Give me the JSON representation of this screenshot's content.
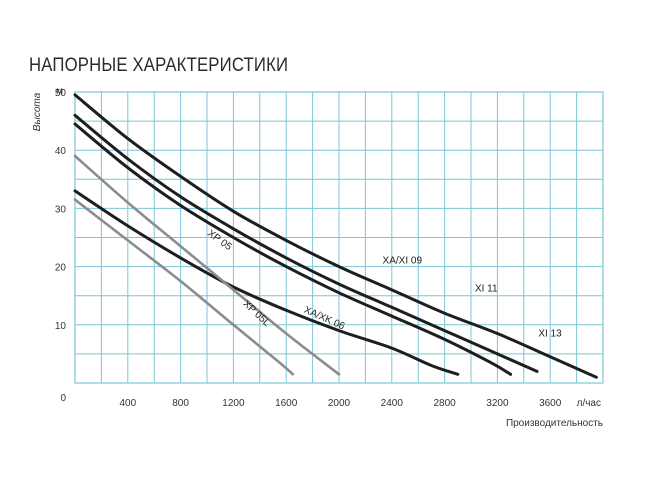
{
  "chart_data": {
    "type": "line",
    "title": "НАПОРНЫЕ ХАРАКТЕРИСТИКИ",
    "ylabel": "Высота",
    "yunit": "м",
    "xlabel": "Производительность",
    "xunit": "л/час",
    "xlim": [
      0,
      4000
    ],
    "ylim": [
      0,
      50
    ],
    "x_ticks": [
      400,
      800,
      1200,
      1600,
      2000,
      2400,
      2800,
      3200,
      3600
    ],
    "y_ticks": [
      0,
      10,
      20,
      30,
      40,
      50
    ],
    "grid": true,
    "colors": {
      "grid": "#7cc6d6",
      "dark": "#1e1e1e",
      "gray": "#8c8c8c"
    },
    "series": [
      {
        "name": "XI 13",
        "color": "dark",
        "points": [
          [
            0,
            49.5
          ],
          [
            400,
            42
          ],
          [
            800,
            35.5
          ],
          [
            1200,
            29.5
          ],
          [
            1600,
            24.5
          ],
          [
            2000,
            20
          ],
          [
            2400,
            16
          ],
          [
            2800,
            12
          ],
          [
            3200,
            8.5
          ],
          [
            3600,
            4.5
          ],
          [
            3950,
            1
          ]
        ],
        "label_at": [
          3510,
          8
        ]
      },
      {
        "name": "XI 11",
        "color": "dark",
        "points": [
          [
            0,
            46
          ],
          [
            400,
            38.5
          ],
          [
            800,
            32
          ],
          [
            1200,
            26.5
          ],
          [
            1600,
            21.5
          ],
          [
            2000,
            17
          ],
          [
            2400,
            13
          ],
          [
            2800,
            9
          ],
          [
            3200,
            5
          ],
          [
            3500,
            2
          ]
        ],
        "label_at": [
          3030,
          15.7
        ]
      },
      {
        "name": "XA/XI 09",
        "color": "dark",
        "points": [
          [
            0,
            44.5
          ],
          [
            400,
            37
          ],
          [
            800,
            30.5
          ],
          [
            1200,
            25
          ],
          [
            1600,
            20
          ],
          [
            2000,
            15.5
          ],
          [
            2400,
            11.5
          ],
          [
            2800,
            7.5
          ],
          [
            3150,
            3.5
          ],
          [
            3300,
            1.5
          ]
        ],
        "label_at": [
          2330,
          20.5
        ]
      },
      {
        "name": "XA/XK 06",
        "color": "dark",
        "points": [
          [
            0,
            33
          ],
          [
            400,
            27
          ],
          [
            800,
            21.5
          ],
          [
            1200,
            16.5
          ],
          [
            1600,
            12.5
          ],
          [
            2000,
            9
          ],
          [
            2400,
            6
          ],
          [
            2700,
            3
          ],
          [
            2900,
            1.5
          ]
        ],
        "label_at": [
          1730,
          12.2
        ],
        "label_rotate": 24
      },
      {
        "name": "XP 05",
        "color": "gray",
        "points": [
          [
            0,
            39
          ],
          [
            400,
            31
          ],
          [
            800,
            23.5
          ],
          [
            1200,
            16
          ],
          [
            1600,
            8.5
          ],
          [
            2000,
            1.5
          ]
        ],
        "label_at": [
          1000,
          25.5
        ],
        "label_rotate": 36
      },
      {
        "name": "XP 05L",
        "color": "gray",
        "points": [
          [
            0,
            31.5
          ],
          [
            400,
            24.5
          ],
          [
            800,
            17.5
          ],
          [
            1200,
            10
          ],
          [
            1550,
            3.5
          ],
          [
            1650,
            1.5
          ]
        ],
        "label_at": [
          1270,
          13.5
        ],
        "label_rotate": 43
      }
    ]
  }
}
